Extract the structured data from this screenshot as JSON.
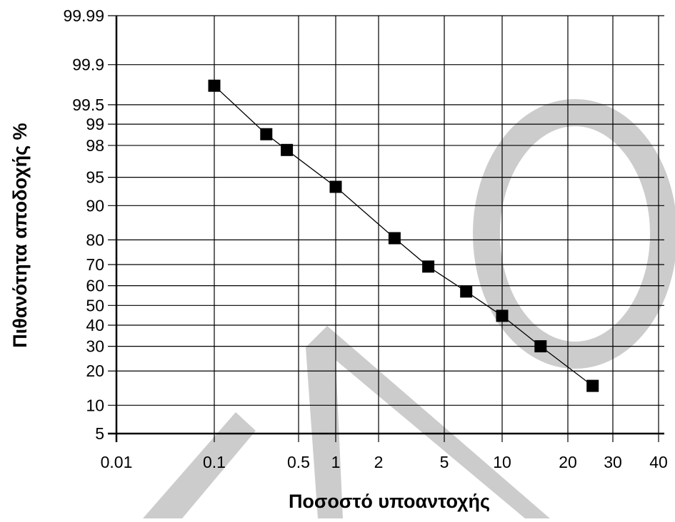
{
  "chart_data": {
    "type": "scatter",
    "title": "",
    "xlabel": "Ποσοστό υποαντοχής",
    "ylabel": "Πιθανότητα αποδοχής %",
    "x_scale": "log",
    "y_scale": "normal-probability",
    "grid": true,
    "xlim": [
      0.01,
      40
    ],
    "ylim": [
      5,
      99.99
    ],
    "x_ticks": [
      {
        "value": 0.01,
        "label": "0.01"
      },
      {
        "value": 0.1,
        "label": "0.1"
      },
      {
        "value": 0.5,
        "label": "0.5"
      },
      {
        "value": 1,
        "label": "1"
      },
      {
        "value": 2,
        "label": "2"
      },
      {
        "value": 5,
        "label": "5"
      },
      {
        "value": 10,
        "label": "10"
      },
      {
        "value": 20,
        "label": "20"
      },
      {
        "value": 30,
        "label": "30"
      },
      {
        "value": 40,
        "label": "40"
      }
    ],
    "y_ticks": [
      {
        "value": 99.99,
        "label": "99.99"
      },
      {
        "value": 99.9,
        "label": "99.9"
      },
      {
        "value": 99.5,
        "label": "99.5"
      },
      {
        "value": 99,
        "label": "99"
      },
      {
        "value": 98,
        "label": "98"
      },
      {
        "value": 95,
        "label": "95"
      },
      {
        "value": 90,
        "label": "90"
      },
      {
        "value": 80,
        "label": "80"
      },
      {
        "value": 70,
        "label": "70"
      },
      {
        "value": 60,
        "label": "60"
      },
      {
        "value": 50,
        "label": "50"
      },
      {
        "value": 40,
        "label": "40"
      },
      {
        "value": 30,
        "label": "30"
      },
      {
        "value": 20,
        "label": "20"
      },
      {
        "value": 10,
        "label": "10"
      },
      {
        "value": 5,
        "label": "5"
      }
    ],
    "series": [
      {
        "x": [
          0.1,
          0.27,
          0.4,
          1,
          2.5,
          4,
          6.5,
          10,
          15,
          25
        ],
        "y": [
          99.76,
          98.6,
          97.7,
          93.6,
          80.6,
          69.1,
          57.1,
          44.7,
          30.0,
          15.1
        ]
      }
    ],
    "marker": "square",
    "line": true,
    "colors": {
      "marker": "#000000",
      "line": "#000000",
      "grid": "#000000"
    },
    "watermark": {
      "text": "ΕΛΟ",
      "color": "#cccccc"
    }
  }
}
